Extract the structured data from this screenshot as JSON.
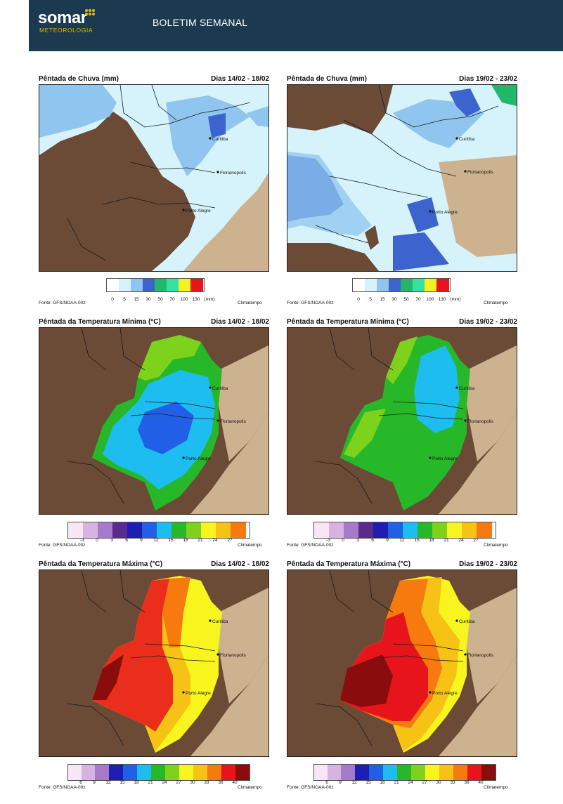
{
  "header": {
    "logo_word": "somar",
    "logo_sub": "METEOROLOGIA",
    "title": "BOLETIM SEMANAL"
  },
  "colors": {
    "header_bg": "#1b3a4f",
    "logo_accent": "#e8b800",
    "land_outside": "#6b4a36",
    "ocean": "#cdb28f"
  },
  "cities": [
    "Curitiba",
    "Florianopolis",
    "Porto Alegre"
  ],
  "rain_scale": {
    "ticks": [
      "0",
      "5",
      "15",
      "30",
      "50",
      "70",
      "100",
      "130"
    ],
    "unit": "(mm)",
    "colors": [
      "#ffffff",
      "#d6f3fb",
      "#8fc5ef",
      "#3d63cf",
      "#22b86a",
      "#38e0a0",
      "#f2f21c",
      "#e8141c"
    ]
  },
  "tmin_scale": {
    "ticks": [
      "-3",
      "0",
      "3",
      "6",
      "9",
      "12",
      "15",
      "18",
      "21",
      "24",
      "27"
    ],
    "colors": [
      "#f6e6f6",
      "#d7b3e2",
      "#a57ac8",
      "#5a2a8c",
      "#1e1eb4",
      "#2160e6",
      "#1ebdf0",
      "#27b82a",
      "#7dd21c",
      "#f8f51e",
      "#f6c216",
      "#f67a0e"
    ]
  },
  "tmax_scale": {
    "ticks": [
      "6",
      "9",
      "12",
      "15",
      "18",
      "21",
      "24",
      "27",
      "30",
      "33",
      "36",
      "40"
    ],
    "colors": [
      "#f6e6f6",
      "#d7b3e2",
      "#a57ac8",
      "#1e1eb4",
      "#2160e6",
      "#1ebdf0",
      "#27b82a",
      "#7dd21c",
      "#f8f51e",
      "#f6c216",
      "#f67a0e",
      "#e8141c",
      "#8a0c0c"
    ]
  },
  "panels": [
    {
      "title": "Pêntada de Chuva (mm)",
      "date": "Dias 14/02 - 18/02",
      "source": "Fonte: GFS/NOAA-00z",
      "credit": "Climatempo"
    },
    {
      "title": "Pêntada de Chuva (mm)",
      "date": "Dias 19/02 - 23/02",
      "source": "Fonte: GFS/NOAA-00z",
      "credit": "Climatempo"
    },
    {
      "title": "Pêntada da Temperatura Mínima (°C)",
      "date": "Dias 14/02 - 18/02",
      "source": "Fonte: GFS/NOAA-00z",
      "credit": "Climatempo"
    },
    {
      "title": "Pêntada da Temperatura Mínima (°C)",
      "date": "Dias 19/02 - 23/02",
      "source": "Fonte: GFS/NOAA-00z",
      "credit": "Climatempo"
    },
    {
      "title": "Pêntada da Temperatura Máxima (°C)",
      "date": "Dias 14/02 - 18/02",
      "source": "Fonte: GFS/NOAA-00z",
      "credit": "Climatempo"
    },
    {
      "title": "Pêntada da Temperatura Máxima (°C)",
      "date": "Dias 19/02 - 23/02",
      "source": "Fonte: GFS/NOAA-00z",
      "credit": "Climatempo"
    }
  ]
}
